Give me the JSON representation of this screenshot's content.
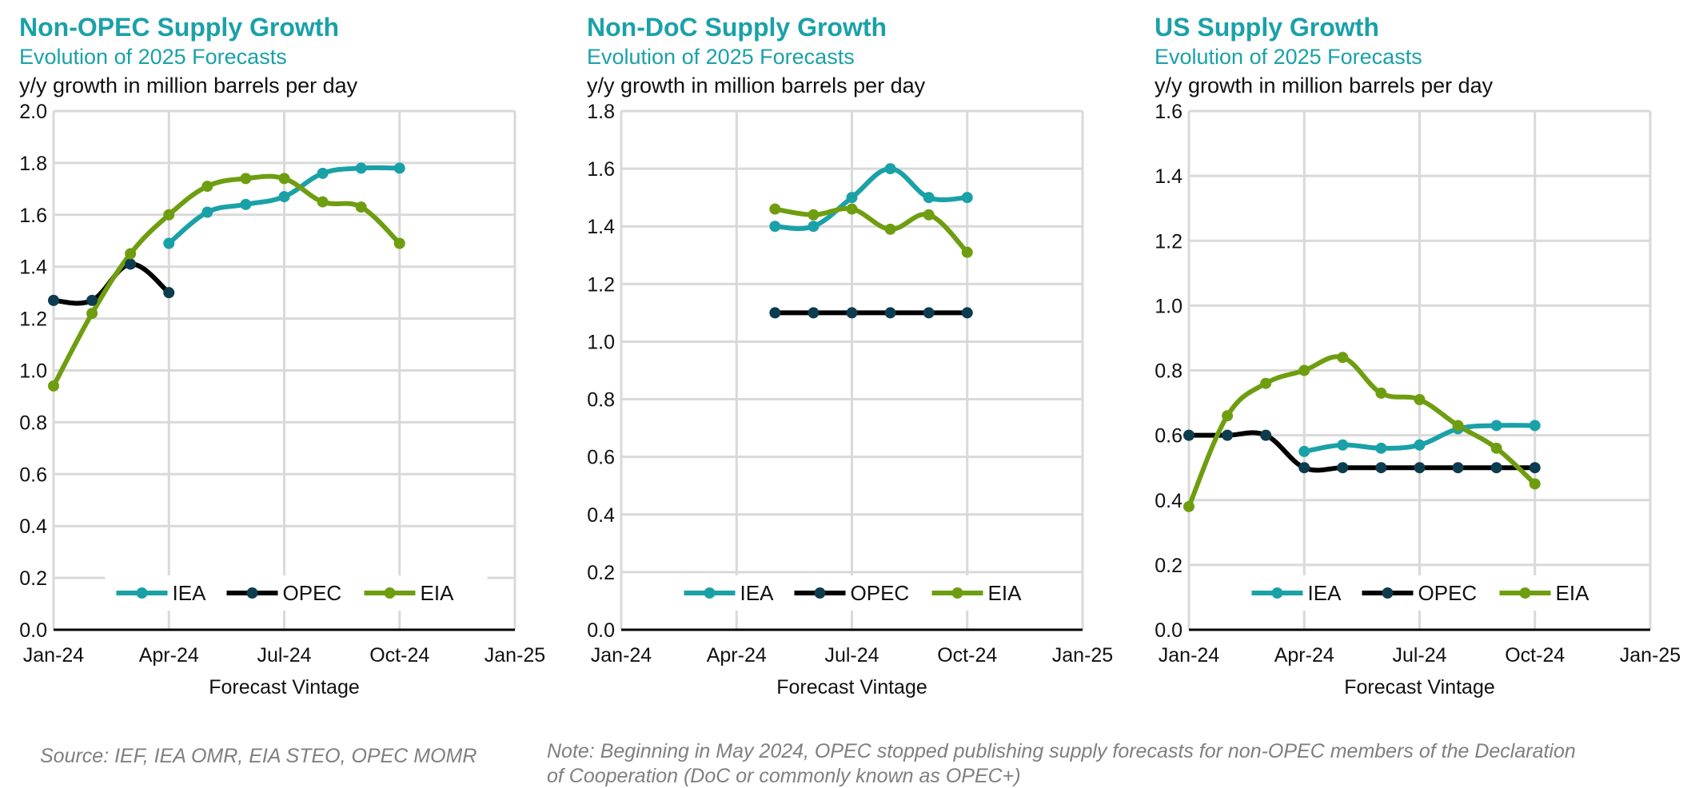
{
  "colors": {
    "title": "#1aa1a8",
    "iea": "#1aa1a8",
    "opec": "#000000",
    "opec_marker": "#0d3c4f",
    "eia": "#6e9e10",
    "grid": "#d9d9d9",
    "axis": "#000000",
    "note": "#7f7f7f"
  },
  "chart_data": [
    {
      "type": "line",
      "title": "Non-OPEC Supply Growth",
      "subtitle": "Evolution of 2025 Forecasts",
      "ylabel": "y/y growth in million barrels per day",
      "xlabel": "Forecast Vintage",
      "x_ticks": [
        "Jan-24",
        "Apr-24",
        "Jul-24",
        "Oct-24",
        "Jan-25"
      ],
      "x_range_months": [
        0,
        12
      ],
      "ylim": [
        0,
        2.0
      ],
      "y_step": 0.2,
      "y_decimals": 1,
      "grid": true,
      "legend": "bottom",
      "series": [
        {
          "name": "IEA",
          "x": [
            3,
            4,
            5,
            6,
            7,
            8,
            9
          ],
          "values": [
            1.49,
            1.61,
            1.64,
            1.67,
            1.76,
            1.78,
            1.78
          ]
        },
        {
          "name": "OPEC",
          "x": [
            0,
            1,
            2,
            3
          ],
          "values": [
            1.27,
            1.27,
            1.41,
            1.3
          ]
        },
        {
          "name": "EIA",
          "x": [
            0,
            1,
            2,
            3,
            4,
            5,
            6,
            7,
            8,
            9
          ],
          "values": [
            0.94,
            1.22,
            1.45,
            1.6,
            1.71,
            1.74,
            1.74,
            1.65,
            1.63,
            1.49
          ]
        }
      ]
    },
    {
      "type": "line",
      "title": "Non-DoC Supply Growth",
      "subtitle": "Evolution of 2025 Forecasts",
      "ylabel": "y/y growth in million barrels per day",
      "xlabel": "Forecast Vintage",
      "x_ticks": [
        "Jan-24",
        "Apr-24",
        "Jul-24",
        "Oct-24",
        "Jan-25"
      ],
      "x_range_months": [
        0,
        12
      ],
      "ylim": [
        0,
        1.8
      ],
      "y_step": 0.2,
      "y_decimals": 1,
      "grid": true,
      "legend": "bottom",
      "series": [
        {
          "name": "IEA",
          "x": [
            4,
            5,
            6,
            7,
            8,
            9
          ],
          "values": [
            1.4,
            1.4,
            1.5,
            1.6,
            1.5,
            1.5
          ]
        },
        {
          "name": "OPEC",
          "x": [
            4,
            5,
            6,
            7,
            8,
            9
          ],
          "values": [
            1.1,
            1.1,
            1.1,
            1.1,
            1.1,
            1.1
          ]
        },
        {
          "name": "EIA",
          "x": [
            4,
            5,
            6,
            7,
            8,
            9
          ],
          "values": [
            1.46,
            1.44,
            1.46,
            1.39,
            1.44,
            1.31
          ]
        }
      ]
    },
    {
      "type": "line",
      "title": "US Supply Growth",
      "subtitle": "Evolution of 2025 Forecasts",
      "ylabel": "y/y growth in million barrels per day",
      "xlabel": "Forecast Vintage",
      "x_ticks": [
        "Jan-24",
        "Apr-24",
        "Jul-24",
        "Oct-24",
        "Jan-25"
      ],
      "x_range_months": [
        0,
        12
      ],
      "ylim": [
        0,
        1.6
      ],
      "y_step": 0.2,
      "y_decimals": 1,
      "grid": true,
      "legend": "bottom",
      "series": [
        {
          "name": "IEA",
          "x": [
            3,
            4,
            5,
            6,
            7,
            8,
            9
          ],
          "values": [
            0.55,
            0.57,
            0.56,
            0.57,
            0.62,
            0.63,
            0.63
          ]
        },
        {
          "name": "OPEC",
          "x": [
            0,
            1,
            2,
            3,
            4,
            5,
            6,
            7,
            8,
            9
          ],
          "values": [
            0.6,
            0.6,
            0.6,
            0.5,
            0.5,
            0.5,
            0.5,
            0.5,
            0.5,
            0.5
          ]
        },
        {
          "name": "EIA",
          "x": [
            0,
            1,
            2,
            3,
            4,
            5,
            6,
            7,
            8,
            9
          ],
          "values": [
            0.38,
            0.66,
            0.76,
            0.8,
            0.84,
            0.73,
            0.71,
            0.63,
            0.56,
            0.45
          ]
        }
      ]
    }
  ],
  "footer": {
    "source": "Source: IEF, IEA OMR, EIA STEO, OPEC MOMR",
    "note_line1": "Note: Beginning in May 2024, OPEC stopped publishing supply forecasts for non-OPEC members of the Declaration",
    "note_line2": "of Cooperation (DoC or commonly known as OPEC+)"
  }
}
